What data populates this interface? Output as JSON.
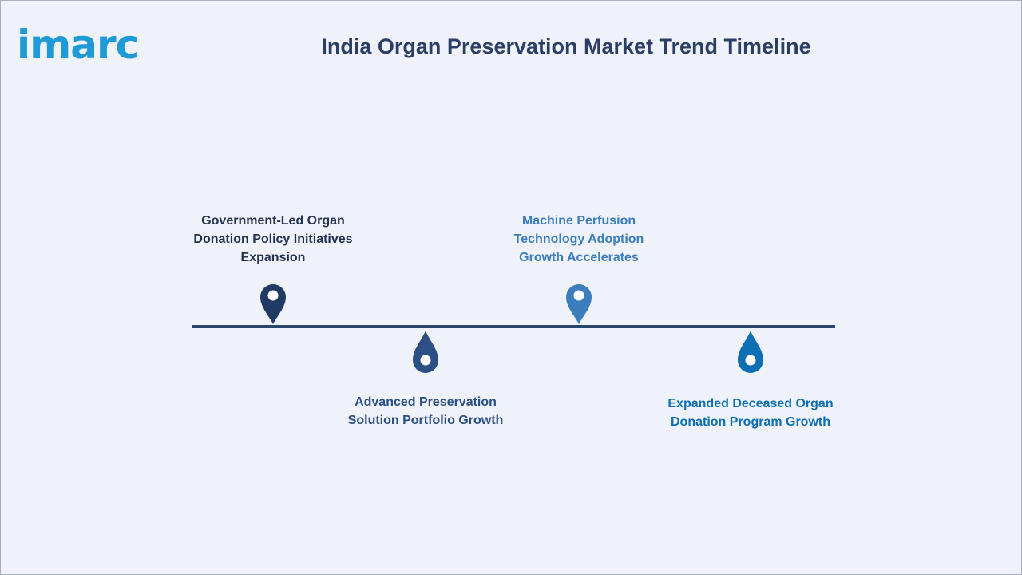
{
  "brand": {
    "logo_text": "imarc"
  },
  "header": {
    "title": "India Organ Preservation Market Trend Timeline"
  },
  "timeline": {
    "events": [
      {
        "label": "Government-Led Organ\nDonation Policy Initiatives\nExpansion",
        "color": "#213a64",
        "position": "above"
      },
      {
        "label": "Advanced Preservation\nSolution Portfolio Growth",
        "color": "#2c4f86",
        "position": "below"
      },
      {
        "label": "Machine Perfusion\nTechnology Adoption\nGrowth Accelerates",
        "color": "#3b7dbd",
        "position": "above"
      },
      {
        "label": "Expanded Deceased Organ\nDonation Program Growth",
        "color": "#0c6fb3",
        "position": "below"
      }
    ]
  }
}
